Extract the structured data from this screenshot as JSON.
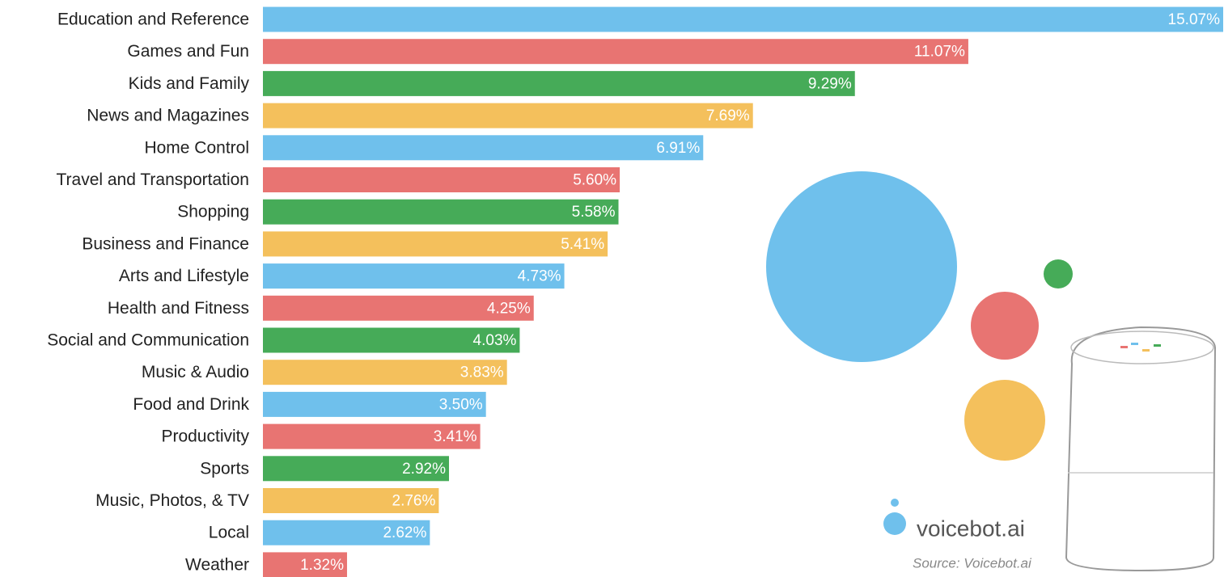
{
  "chart_data": {
    "type": "bar",
    "orientation": "horizontal",
    "categories": [
      "Education and Reference",
      "Games and Fun",
      "Kids and Family",
      "News and Magazines",
      "Home Control",
      "Travel and Transportation",
      "Shopping",
      "Business and Finance",
      "Arts and Lifestyle",
      "Health and Fitness",
      "Social and Communication",
      "Music & Audio",
      "Food and Drink",
      "Productivity",
      "Sports",
      "Music, Photos, & TV",
      "Local",
      "Weather"
    ],
    "values": [
      15.07,
      11.07,
      9.29,
      7.69,
      6.91,
      5.6,
      5.58,
      5.41,
      4.73,
      4.25,
      4.03,
      3.83,
      3.5,
      3.41,
      2.92,
      2.76,
      2.62,
      1.32
    ],
    "value_labels": [
      "15.07%",
      "11.07%",
      "9.29%",
      "7.69%",
      "6.91%",
      "5.60%",
      "5.58%",
      "5.41%",
      "4.73%",
      "4.25%",
      "4.03%",
      "3.83%",
      "3.50%",
      "3.41%",
      "2.92%",
      "2.76%",
      "2.62%",
      "1.32%"
    ],
    "colors": [
      "#6fc0ec",
      "#e87472",
      "#46ab58",
      "#f4c05c"
    ]
  },
  "logo": "voicebot.ai",
  "source": "Source: Voicebot.ai"
}
